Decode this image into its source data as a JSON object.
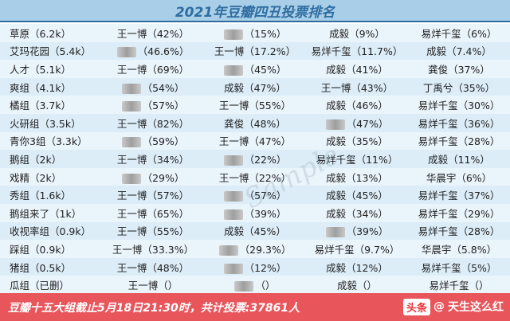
{
  "title": "2021年豆瓣四丑投票排名",
  "rows": [
    {
      "group": "草原（6.2k）",
      "c1": "王一博（42%）",
      "c2": "（15%）",
      "c2blur": true,
      "c3": "成毅（9%）",
      "c4": "易烊千玺（6%）"
    },
    {
      "group": "艾玛花园（5.4k）",
      "c1": "（46.6%）",
      "c1blur": true,
      "c2": "王一博（17.2%）",
      "c3": "易烊千玺（11.7%）",
      "c4": "成毅（7.4%）"
    },
    {
      "group": "人才（5.1k）",
      "c1": "王一博（69%）",
      "c2": "（45%）",
      "c2blur": true,
      "c3": "成毅（41%）",
      "c4": "龚俊（37%）"
    },
    {
      "group": "爽组（4.1k）",
      "c1": "（54%）",
      "c1blur": true,
      "c2": "成毅（47%）",
      "c3": "王一博（43%）",
      "c4": "丁禹兮（35%）"
    },
    {
      "group": "橘组（3.7k）",
      "c1": "（57%）",
      "c1blur": true,
      "c2": "王一博（55%）",
      "c3": "成毅（46%）",
      "c4": "易烊千玺（30%）"
    },
    {
      "group": "火研组（3.5k）",
      "c1": "王一博（82%）",
      "c2": "龚俊（48%）",
      "c3": "（47%）",
      "c3blur": true,
      "c4": "易烊千玺（36%）"
    },
    {
      "group": "青你3组（3.3k）",
      "c1": "（59%）",
      "c1blur": true,
      "c2": "王一博（47%）",
      "c3": "成毅（35%）",
      "c4": "易烊千玺（28%）"
    },
    {
      "group": "鹅组（2k）",
      "c1": "王一博（34%）",
      "c2": "（22%）",
      "c2blur": true,
      "c3": "易烊千玺（11%）",
      "c4": "成毅（11%）"
    },
    {
      "group": "戏精（2k）",
      "c1": "（29%）",
      "c1blur": true,
      "c2": "王一博（22%）",
      "c3": "成毅（13%）",
      "c4": "华晨宇（6%）"
    },
    {
      "group": "秀组（1.6k）",
      "c1": "王一博（57%）",
      "c2": "（57%）",
      "c2blur": true,
      "c3": "成毅（45%）",
      "c4": "易烊千玺（37%）"
    },
    {
      "group": "鹅组来了（1k）",
      "c1": "王一博（65%）",
      "c2": "（39%）",
      "c2blur": true,
      "c3": "成毅（34%）",
      "c4": "易烊千玺（29%）"
    },
    {
      "group": "收视率组（0.9k）",
      "c1": "王一博（55%）",
      "c2": "成毅（45%）",
      "c3": "（39%）",
      "c3blur": true,
      "c4": "易烊千玺（28%）"
    },
    {
      "group": "踩组（0.9k）",
      "c1": "王一博（33.3%）",
      "c2": "（29.3%）",
      "c2blur": true,
      "c3": "易烊千玺（9.7%）",
      "c4": "华晨宇（5.8%）"
    },
    {
      "group": "猪组（0.5k）",
      "c1": "王一博（48%）",
      "c2": "（12%）",
      "c2blur": true,
      "c3": "成毅（12%）",
      "c4": "易烊千玺（5%）"
    },
    {
      "group": "瓜组（已删）",
      "c1": "王一博（）",
      "c2": "（）",
      "c2blur": true,
      "c3": "成毅（）",
      "c4": "易烊千玺（）"
    }
  ],
  "footer": "豆瓣十五大组截止5月18日21:30时，共计投票:37861人",
  "watermark": "Sample",
  "toutiao": {
    "brand": "头条",
    "account": "天生这么红",
    "icon": "at-icon"
  },
  "colors": {
    "header": "#a9cfe8",
    "footer": "#e8565c",
    "row_light": "#eaf4fb",
    "row_dark": "#dcedf8"
  }
}
